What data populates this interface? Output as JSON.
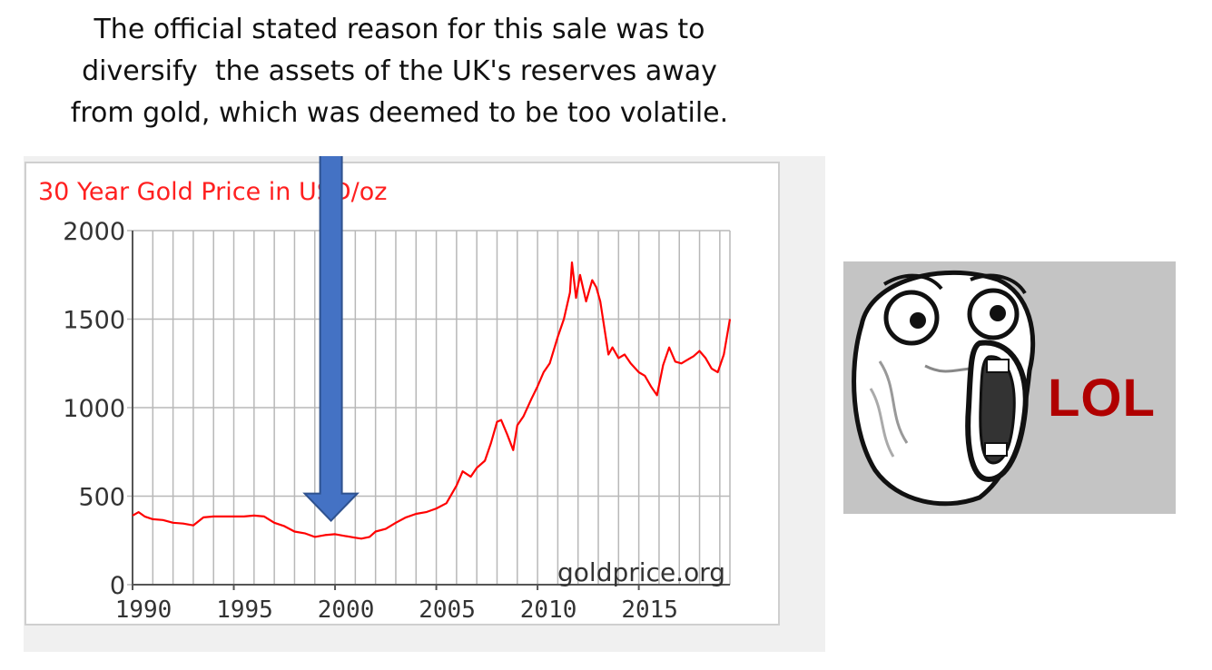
{
  "caption": {
    "lines": [
      "The official stated reason for this sale was to",
      "diversify  the assets of the UK's reserves away",
      "from gold, which was deemed to be too volatile."
    ]
  },
  "chart_data": {
    "type": "line",
    "title": "30 Year Gold Price in USD/oz",
    "watermark": "goldprice.org",
    "xlabel": "",
    "ylabel": "",
    "xlim": [
      1990,
      2019.5
    ],
    "ylim": [
      0,
      2000
    ],
    "xticks": [
      "1990",
      "1995",
      "2000",
      "2005",
      "2010",
      "2015"
    ],
    "yticks": [
      "0",
      "500",
      "1000",
      "1500",
      "2000"
    ],
    "grid": true,
    "color": "#ff0000",
    "series": [
      {
        "x": [
          1990,
          1990.3,
          1990.6,
          1991,
          1991.5,
          1992,
          1992.5,
          1993,
          1993.5,
          1994,
          1994.5,
          1995,
          1995.5,
          1996,
          1996.5,
          1997,
          1997.5,
          1998,
          1998.5,
          1999,
          1999.5,
          2000,
          2000.5,
          2001,
          2001.3,
          2001.7,
          2002,
          2002.5,
          2003,
          2003.5,
          2004,
          2004.5,
          2005,
          2005.5,
          2006,
          2006.3,
          2006.7,
          2007,
          2007.4,
          2007.7,
          2008,
          2008.2,
          2008.5,
          2008.8,
          2009,
          2009.3,
          2009.7,
          2010,
          2010.3,
          2010.6,
          2011,
          2011.3,
          2011.6,
          2011.7,
          2011.9,
          2012.1,
          2012.4,
          2012.7,
          2012.9,
          2013.1,
          2013.3,
          2013.5,
          2013.7,
          2014,
          2014.3,
          2014.6,
          2015,
          2015.3,
          2015.6,
          2015.9,
          2016.2,
          2016.5,
          2016.8,
          2017.1,
          2017.4,
          2017.7,
          2018,
          2018.3,
          2018.6,
          2018.9,
          2019.2,
          2019.5
        ],
        "y": [
          390,
          410,
          385,
          370,
          365,
          350,
          345,
          335,
          380,
          385,
          385,
          385,
          385,
          390,
          385,
          350,
          330,
          300,
          290,
          270,
          280,
          285,
          275,
          265,
          260,
          270,
          300,
          315,
          350,
          380,
          400,
          410,
          430,
          460,
          560,
          640,
          610,
          660,
          700,
          800,
          920,
          930,
          850,
          760,
          900,
          950,
          1050,
          1120,
          1200,
          1250,
          1400,
          1500,
          1650,
          1820,
          1620,
          1750,
          1600,
          1720,
          1680,
          1600,
          1450,
          1300,
          1340,
          1280,
          1300,
          1250,
          1200,
          1180,
          1120,
          1070,
          1240,
          1340,
          1260,
          1250,
          1270,
          1290,
          1320,
          1280,
          1220,
          1200,
          1300,
          1500
        ]
      }
    ]
  },
  "annotation": {
    "arrow_year": 1999.8,
    "arrow_value": 320
  },
  "meme": {
    "label": "LOL"
  }
}
